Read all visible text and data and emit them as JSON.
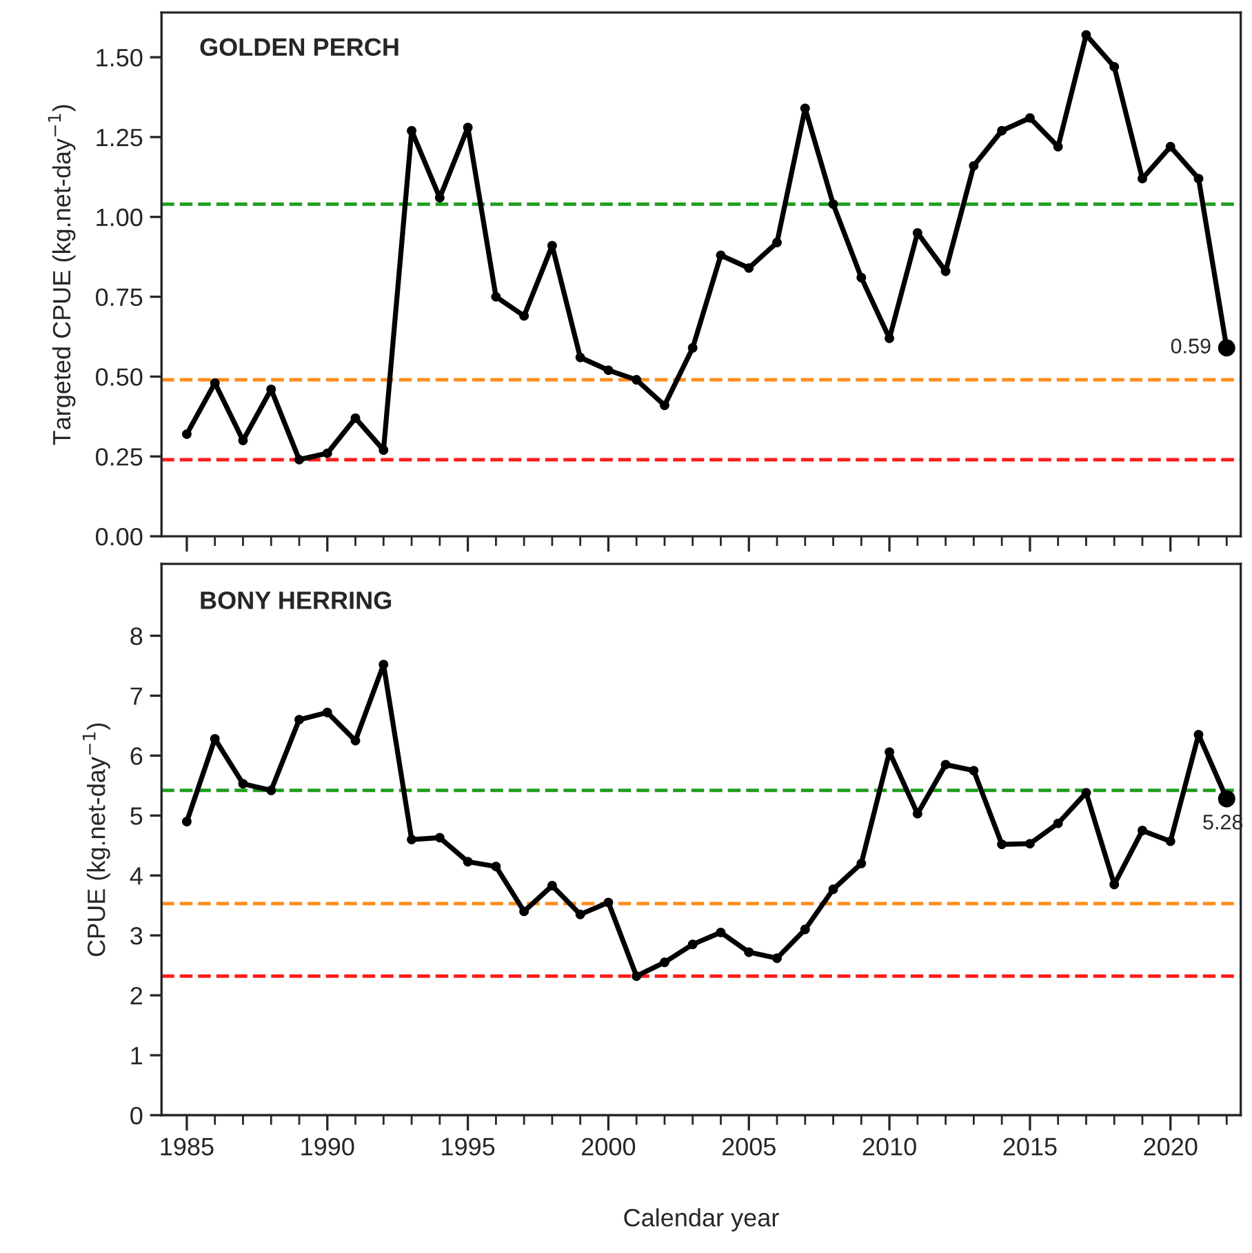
{
  "chart_data": [
    {
      "type": "line",
      "title": "GOLDEN PERCH",
      "ylabel": "Targeted CPUE (kg.net-day$^{−1}$)",
      "x": [
        1985,
        1986,
        1987,
        1988,
        1989,
        1990,
        1991,
        1992,
        1993,
        1994,
        1995,
        1996,
        1997,
        1998,
        1999,
        2000,
        2001,
        2002,
        2003,
        2004,
        2005,
        2006,
        2007,
        2008,
        2009,
        2010,
        2011,
        2012,
        2013,
        2014,
        2015,
        2016,
        2017,
        2018,
        2019,
        2020,
        2021,
        2022
      ],
      "series": [
        {
          "color": "#000000",
          "values": [
            0.32,
            0.48,
            0.3,
            0.46,
            0.24,
            0.26,
            0.37,
            0.27,
            1.27,
            1.06,
            1.28,
            0.75,
            0.69,
            0.91,
            0.56,
            0.52,
            0.49,
            0.41,
            0.59,
            0.88,
            0.84,
            0.92,
            1.34,
            1.04,
            0.81,
            0.62,
            0.95,
            0.83,
            1.16,
            1.27,
            1.31,
            1.22,
            1.57,
            1.47,
            1.12,
            1.22,
            1.12,
            0.59
          ],
          "value_labels": [
            null,
            null,
            null,
            null,
            null,
            null,
            null,
            null,
            null,
            null,
            null,
            null,
            null,
            null,
            null,
            null,
            null,
            null,
            null,
            null,
            null,
            null,
            null,
            null,
            null,
            null,
            null,
            null,
            null,
            null,
            null,
            null,
            null,
            null,
            null,
            null,
            null,
            "0.59"
          ]
        }
      ],
      "marker": "circle",
      "line_style": "solid",
      "grid": false,
      "legend": false,
      "tick_labels": "y",
      "xlim": [
        1984.1,
        2022.5
      ],
      "xticks": [
        1985,
        1990,
        1995,
        2000,
        2005,
        2010,
        2015,
        2020
      ],
      "ylim": [
        0,
        1.64
      ],
      "yticks": [
        {
          "value": 0,
          "label": "0.00"
        },
        {
          "value": 0.25,
          "label": "0.25"
        },
        {
          "value": 0.5,
          "label": "0.50"
        },
        {
          "value": 0.75,
          "label": "0.75"
        },
        {
          "value": 1.0,
          "label": "1.00"
        },
        {
          "value": 1.25,
          "label": "1.25"
        },
        {
          "value": 1.5,
          "label": "1.50"
        }
      ],
      "ref_lines": [
        {
          "axis": "y",
          "value": 1.04,
          "color": "#1f9e1f",
          "line_style": "dashed"
        },
        {
          "axis": "y",
          "value": 0.49,
          "color": "#ff8c1a",
          "line_style": "dashed"
        },
        {
          "axis": "y",
          "value": 0.24,
          "color": "#ff1a1a",
          "line_style": "dashed"
        }
      ]
    },
    {
      "type": "line",
      "title": "BONY HERRING",
      "ylabel": "CPUE (kg.net-day$^{−1}$)",
      "xlabel": "Calendar year",
      "x": [
        1985,
        1986,
        1987,
        1988,
        1989,
        1990,
        1991,
        1992,
        1993,
        1994,
        1995,
        1996,
        1997,
        1998,
        1999,
        2000,
        2001,
        2002,
        2003,
        2004,
        2005,
        2006,
        2007,
        2008,
        2009,
        2010,
        2011,
        2012,
        2013,
        2014,
        2015,
        2016,
        2017,
        2018,
        2019,
        2020,
        2021,
        2022
      ],
      "series": [
        {
          "color": "#000000",
          "values": [
            4.9,
            6.28,
            5.53,
            5.42,
            6.6,
            6.72,
            6.25,
            7.52,
            4.6,
            4.63,
            4.23,
            4.15,
            3.4,
            3.83,
            3.35,
            3.55,
            2.32,
            2.55,
            2.85,
            3.05,
            2.72,
            2.62,
            3.1,
            3.77,
            4.2,
            6.06,
            5.03,
            5.85,
            5.75,
            4.52,
            4.53,
            4.87,
            5.38,
            3.85,
            4.75,
            4.57,
            6.35,
            5.28
          ],
          "value_labels": [
            null,
            null,
            null,
            null,
            null,
            null,
            null,
            null,
            null,
            null,
            null,
            null,
            null,
            null,
            null,
            null,
            null,
            null,
            null,
            null,
            null,
            null,
            null,
            null,
            null,
            null,
            null,
            null,
            null,
            null,
            null,
            null,
            null,
            null,
            null,
            null,
            null,
            "5.28"
          ]
        }
      ],
      "marker": "circle",
      "line_style": "solid",
      "grid": false,
      "legend": false,
      "xlim": [
        1984.1,
        2022.5
      ],
      "xticks": [
        1985,
        1990,
        1995,
        2000,
        2005,
        2010,
        2015,
        2020
      ],
      "ylim": [
        0,
        9.2
      ],
      "yticks": [
        0,
        1,
        2,
        3,
        4,
        5,
        6,
        7,
        8
      ],
      "ref_lines": [
        {
          "axis": "y",
          "value": 5.42,
          "color": "#1f9e1f",
          "line_style": "dashed"
        },
        {
          "axis": "y",
          "value": 3.53,
          "color": "#ff8c1a",
          "line_style": "dashed"
        },
        {
          "axis": "y",
          "value": 2.32,
          "color": "#ff1a1a",
          "line_style": "dashed"
        }
      ]
    }
  ]
}
